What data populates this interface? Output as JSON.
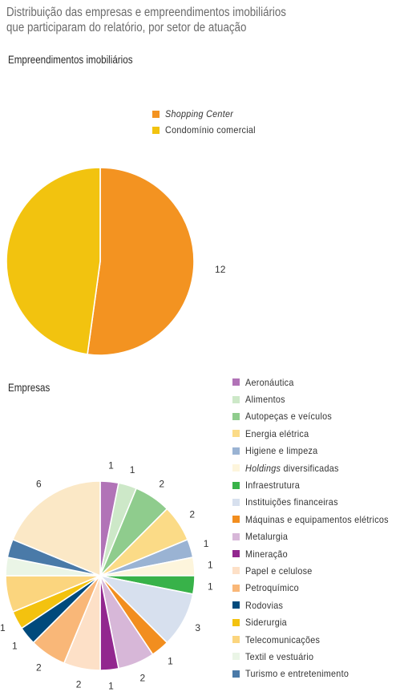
{
  "title_line1": "Distribuição das empresas e empreendimentos imobiliários",
  "title_line2": "que participaram do relatório, por setor de atuação",
  "chart_data": [
    {
      "type": "pie",
      "title": "Empreendimentos imobiliários",
      "series": [
        {
          "name": "Shopping Center",
          "value": 12,
          "color": "#f39321",
          "italic": true
        },
        {
          "name": "Condomínio comercial",
          "value": 11,
          "color": "#f2c30f",
          "italic": false
        }
      ]
    },
    {
      "type": "pie",
      "title": "Empresas",
      "series": [
        {
          "name": "Aeronáutica",
          "value": 1,
          "color": "#b173b7"
        },
        {
          "name": "Alimentos",
          "value": 1,
          "color": "#cde8c8"
        },
        {
          "name": "Autopeças e veículos",
          "value": 2,
          "color": "#8fcc8d"
        },
        {
          "name": "Energia elétrica",
          "value": 2,
          "color": "#fbdb87"
        },
        {
          "name": "Higiene e limpeza",
          "value": 1,
          "color": "#9ab3d3"
        },
        {
          "name": "diversificadas",
          "prefix": "Holdings",
          "value": 1,
          "color": "#fdf5dc"
        },
        {
          "name": "Infraestrutura",
          "value": 1,
          "color": "#38b249"
        },
        {
          "name": "Instituições financeiras",
          "value": 3,
          "color": "#d7e0ee"
        },
        {
          "name": "Máquinas e equipamentos elétricos",
          "value": 1,
          "color": "#f28e1f"
        },
        {
          "name": "Metalurgia",
          "value": 2,
          "color": "#d7b7d8"
        },
        {
          "name": "Mineração",
          "value": 1,
          "color": "#92278f"
        },
        {
          "name": "Papel e celulose",
          "value": 2,
          "color": "#fde0c7"
        },
        {
          "name": "Petroquímico",
          "value": 2,
          "color": "#f9b778"
        },
        {
          "name": "Rodovias",
          "value": 1,
          "color": "#004a7c"
        },
        {
          "name": "Siderurgia",
          "value": 1,
          "color": "#f3c20f"
        },
        {
          "name": "Telecomunicações",
          "value": 2,
          "color": "#fbd57e"
        },
        {
          "name": "Textil e vestuário",
          "value": 1,
          "color": "#eaf5e6"
        },
        {
          "name": "Turismo e entretenimento",
          "value": 1,
          "color": "#4a7aa8"
        },
        {
          "name": "",
          "value": 6,
          "color": "#fbe8c6"
        }
      ]
    }
  ]
}
